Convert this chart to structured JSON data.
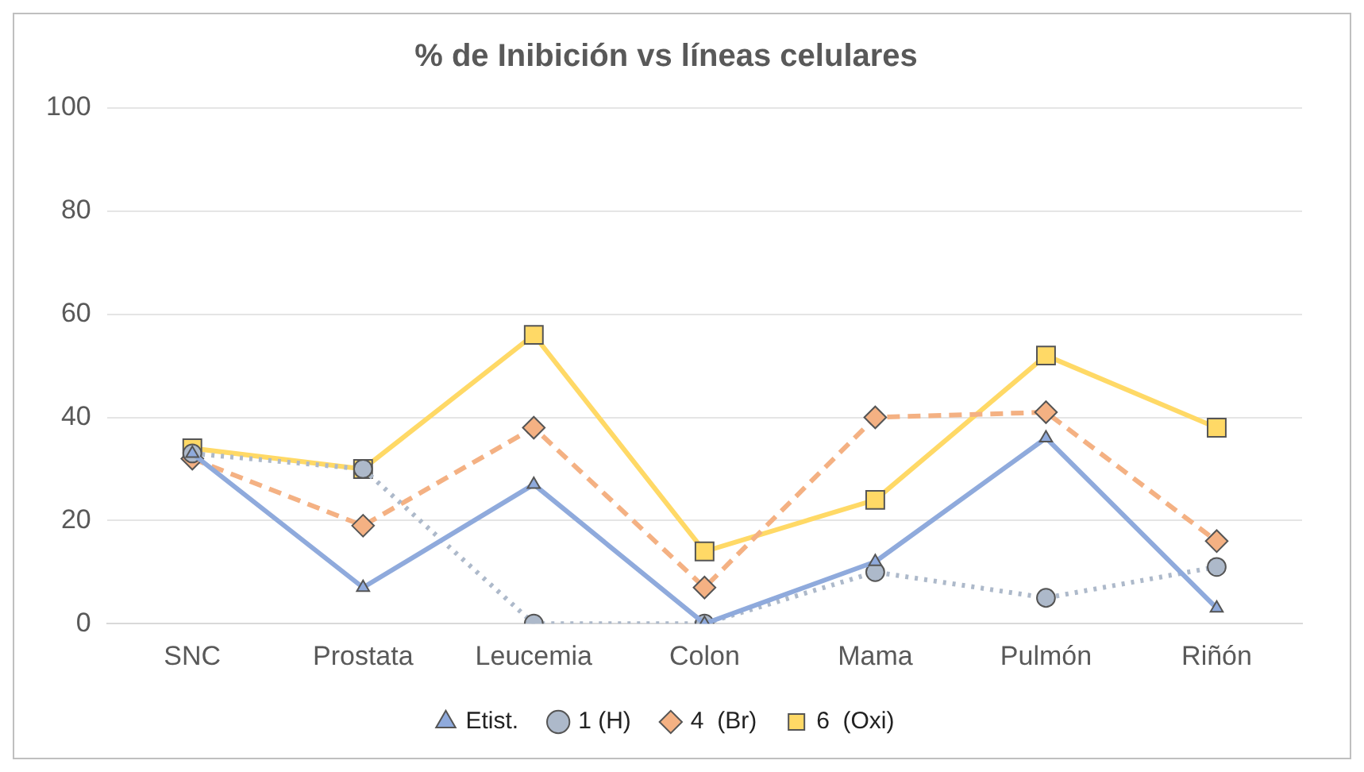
{
  "chart_data": {
    "type": "line",
    "title": "% de Inibición vs líneas celulares",
    "categories": [
      "SNC",
      "Prostata",
      "Leucemia",
      "Colon",
      "Mama",
      "Pulmón",
      "Riñón"
    ],
    "series": [
      {
        "name": "Etist.",
        "color": "#8faadc",
        "marker": "triangle",
        "line_style": "solid",
        "values": [
          33,
          7,
          27,
          0,
          12,
          36,
          3
        ]
      },
      {
        "name": "1 (H)",
        "color": "#adb9ca",
        "marker": "circle",
        "line_style": "dotted",
        "values": [
          33,
          30,
          0,
          0,
          10,
          5,
          11
        ]
      },
      {
        "name": "4  (Br)",
        "color": "#f4b183",
        "marker": "diamond",
        "line_style": "dashed",
        "values": [
          32,
          19,
          38,
          7,
          40,
          41,
          16
        ]
      },
      {
        "name": "6  (Oxi)",
        "color": "#ffd966",
        "marker": "square",
        "line_style": "solid",
        "values": [
          34,
          30,
          56,
          14,
          24,
          52,
          38
        ]
      }
    ],
    "ylim": [
      0,
      100
    ],
    "yticks": [
      0,
      20,
      40,
      60,
      80,
      100
    ],
    "grid": "y",
    "legend": "bottom"
  }
}
